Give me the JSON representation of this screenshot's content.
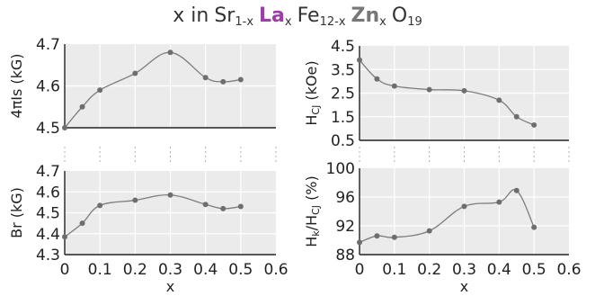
{
  "header": {
    "prefix": "x in",
    "sr": "Sr",
    "sr_sub": "1-x",
    "la": "La",
    "la_sub": "x",
    "fe": "Fe",
    "fe_sub": "12-x",
    "zn": "Zn",
    "zn_sub": "x",
    "o": "O",
    "o_sub": "19",
    "la_color": "#9b3fa4",
    "zn_color": "#777777"
  },
  "colors": {
    "line": "#7d7d7d",
    "marker": "#6e6e6e",
    "plot_bg": "#ebebeb",
    "grid": "#ffffff",
    "axis": "#222222",
    "separator": "#b0b0b0"
  },
  "chart_data": [
    {
      "id": "4pi-is",
      "type": "line",
      "ylabel": "4πIs (kG)",
      "ylabel_main": "4πIs",
      "ylabel_unit": " (kG)",
      "ylim": [
        4.5,
        4.7
      ],
      "yticks": [
        "4.5",
        "4.6",
        "4.7"
      ],
      "xlim": [
        0,
        0.6
      ],
      "xticks": [
        "0",
        "0.1",
        "0.2",
        "0.3",
        "0.4",
        "0.5",
        "0.6"
      ],
      "show_xtick_labels": false,
      "xlabel": "",
      "grid": true,
      "x": [
        0,
        0.05,
        0.1,
        0.2,
        0.3,
        0.4,
        0.45,
        0.5
      ],
      "y": [
        4.5,
        4.55,
        4.59,
        4.63,
        4.68,
        4.62,
        4.61,
        4.615
      ]
    },
    {
      "id": "hcj",
      "type": "line",
      "ylabel": "HCJ (kOe)",
      "ylabel_main": "H",
      "ylabel_sub": "CJ",
      "ylabel_unit": " (kOe)",
      "ylim": [
        0.5,
        4.5
      ],
      "yticks": [
        "0.5",
        "1.5",
        "2.5",
        "3.5",
        "4.5"
      ],
      "xlim": [
        0,
        0.6
      ],
      "xticks": [
        "0",
        "0.1",
        "0.2",
        "0.3",
        "0.4",
        "0.5",
        "0.6"
      ],
      "show_xtick_labels": false,
      "xlabel": "",
      "grid": true,
      "x": [
        0,
        0.05,
        0.1,
        0.2,
        0.3,
        0.4,
        0.45,
        0.5
      ],
      "y": [
        3.9,
        3.1,
        2.8,
        2.65,
        2.6,
        2.2,
        1.5,
        1.15
      ]
    },
    {
      "id": "br",
      "type": "line",
      "ylabel": "Br (kG)",
      "ylabel_main": "Br",
      "ylabel_unit": " (kG)",
      "ylim": [
        4.3,
        4.7
      ],
      "yticks": [
        "4.3",
        "4.4",
        "4.5",
        "4.6",
        "4.7"
      ],
      "xlim": [
        0,
        0.6
      ],
      "xticks": [
        "0",
        "0.1",
        "0.2",
        "0.3",
        "0.4",
        "0.5",
        "0.6"
      ],
      "show_xtick_labels": true,
      "xlabel": "x",
      "grid": true,
      "x": [
        0,
        0.05,
        0.1,
        0.2,
        0.3,
        0.4,
        0.45,
        0.5
      ],
      "y": [
        4.385,
        4.45,
        4.535,
        4.56,
        4.585,
        4.54,
        4.52,
        4.53
      ]
    },
    {
      "id": "hk-hcj",
      "type": "line",
      "ylabel": "Hk/HCJ (%)",
      "ylabel_main": "H",
      "ylabel_sub": "k",
      "ylabel_mid": "/H",
      "ylabel_sub2": "CJ",
      "ylabel_unit": " (%)",
      "ylim": [
        88,
        100
      ],
      "yticks": [
        "88",
        "92",
        "96",
        "100"
      ],
      "xlim": [
        0,
        0.6
      ],
      "xticks": [
        "0",
        "0.1",
        "0.2",
        "0.3",
        "0.4",
        "0.5",
        "0.6"
      ],
      "show_xtick_labels": true,
      "xlabel": "x",
      "grid": true,
      "x": [
        0,
        0.05,
        0.1,
        0.2,
        0.3,
        0.4,
        0.45,
        0.5
      ],
      "y": [
        89.7,
        90.6,
        90.4,
        91.3,
        94.7,
        95.3,
        96.9,
        91.8
      ]
    }
  ]
}
